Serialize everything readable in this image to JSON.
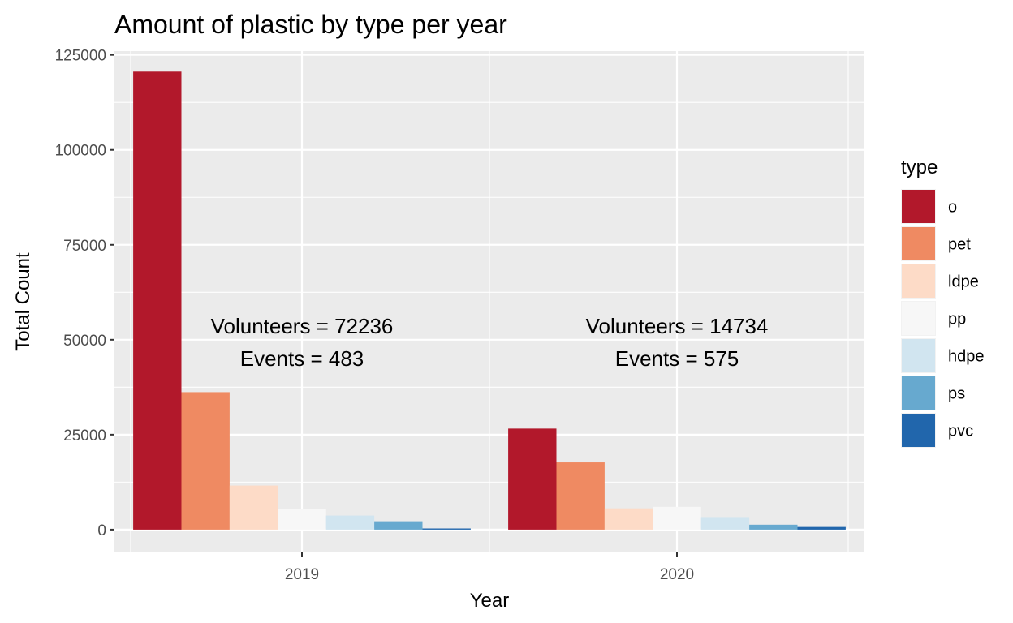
{
  "chart_data": {
    "type": "bar",
    "title": "Amount of plastic by type per year",
    "xlabel": "Year",
    "ylabel": "Total Count",
    "categories": [
      "2019",
      "2020"
    ],
    "ylim": [
      -6000,
      126000
    ],
    "yticks": [
      0,
      25000,
      50000,
      75000,
      100000,
      125000
    ],
    "ytick_labels": [
      "0",
      "25000",
      "50000",
      "75000",
      "100000",
      "125000"
    ],
    "grid": true,
    "legend": {
      "title": "type",
      "position": "right"
    },
    "series": [
      {
        "name": "o",
        "color": "#b2182b",
        "values": [
          120600,
          26600
        ]
      },
      {
        "name": "pet",
        "color": "#ef8a62",
        "values": [
          36200,
          17700
        ]
      },
      {
        "name": "ldpe",
        "color": "#fddbc7",
        "values": [
          11600,
          5600
        ]
      },
      {
        "name": "pp",
        "color": "#f7f7f7",
        "values": [
          5400,
          6000
        ]
      },
      {
        "name": "hdpe",
        "color": "#d1e5f0",
        "values": [
          3700,
          3300
        ]
      },
      {
        "name": "ps",
        "color": "#67a9cf",
        "values": [
          2200,
          1300
        ]
      },
      {
        "name": "pvc",
        "color": "#2166ac",
        "values": [
          300,
          700
        ]
      }
    ],
    "annotations": [
      {
        "category": "2019",
        "lines": [
          "Volunteers = 72236",
          "Events = 483"
        ],
        "y": [
          53600,
          45000
        ]
      },
      {
        "category": "2020",
        "lines": [
          "Volunteers = 14734",
          "Events = 575"
        ],
        "y": [
          53600,
          45000
        ]
      }
    ]
  }
}
